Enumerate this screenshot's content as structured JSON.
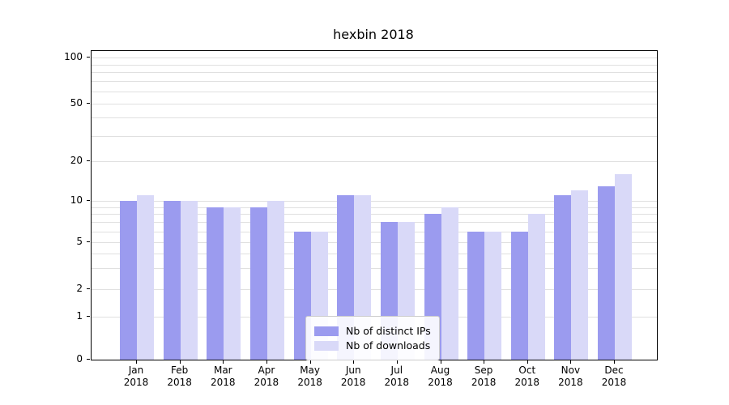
{
  "chart": {
    "title": "hexbin 2018",
    "legend": {
      "items": [
        {
          "label": "Nb of distinct IPs"
        },
        {
          "label": "Nb of downloads"
        }
      ]
    }
  },
  "chart_data": {
    "type": "bar",
    "title": "hexbin 2018",
    "xlabel": "",
    "ylabel": "",
    "yscale": "symlog",
    "ylim": [
      0,
      110
    ],
    "y_ticks": [
      0,
      1,
      2,
      5,
      10,
      20,
      50,
      100
    ],
    "y_minor_gridlines": [
      3,
      4,
      6,
      7,
      8,
      9,
      30,
      40,
      60,
      70,
      80,
      90
    ],
    "grid": true,
    "legend_position": "lower center",
    "categories": [
      "Jan",
      "Feb",
      "Mar",
      "Apr",
      "May",
      "Jun",
      "Jul",
      "Aug",
      "Sep",
      "Oct",
      "Nov",
      "Dec"
    ],
    "year_label": "2018",
    "series": [
      {
        "name": "Nb of distinct IPs",
        "color": "#9b9bef",
        "values": [
          10,
          10,
          9,
          9,
          6,
          11,
          7,
          8,
          6,
          6,
          11,
          13
        ]
      },
      {
        "name": "Nb of downloads",
        "color": "#d9d9f8",
        "values": [
          11,
          10,
          9,
          10,
          6,
          11,
          7,
          9,
          6,
          8,
          12,
          16
        ]
      }
    ]
  }
}
